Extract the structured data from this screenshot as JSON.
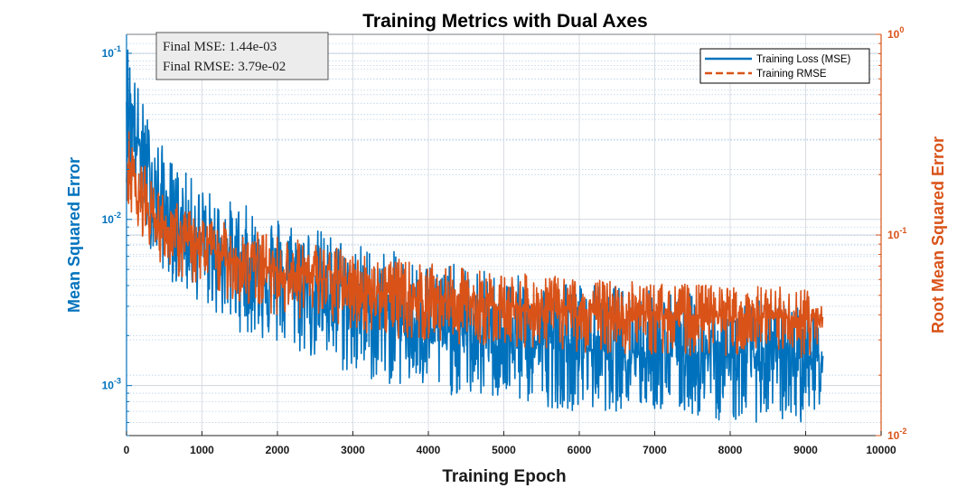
{
  "chart_data": {
    "type": "line",
    "title": "Training Metrics with Dual Axes",
    "xlabel": "Training Epoch",
    "ylabel_left": "Mean Squared Error",
    "ylabel_right": "Root Mean Squared Error",
    "xlim": [
      0,
      10000
    ],
    "xticks": [
      0,
      1000,
      2000,
      3000,
      4000,
      5000,
      6000,
      7000,
      8000,
      9000,
      10000
    ],
    "xtick_labels": [
      "0",
      "1000",
      "2000",
      "3000",
      "4000",
      "5000",
      "6000",
      "7000",
      "8000",
      "9000",
      "10000"
    ],
    "ylim_left": [
      0.0005,
      0.13
    ],
    "ylim_right": [
      0.01,
      1
    ],
    "yscale_left": "log",
    "yscale_right": "log",
    "yticks_left": [
      {
        "value": 0.1,
        "base": "10",
        "exp": "-1"
      },
      {
        "value": 0.01,
        "base": "10",
        "exp": "-2"
      },
      {
        "value": 0.001,
        "base": "10",
        "exp": "-3"
      }
    ],
    "yticks_right": [
      {
        "value": 1,
        "base": "10",
        "exp": "0"
      },
      {
        "value": 0.1,
        "base": "10",
        "exp": "-1"
      },
      {
        "value": 0.01,
        "base": "10",
        "exp": "-2"
      }
    ],
    "grid": true,
    "minor_grid": true,
    "legend_position": "top-right",
    "annotation": [
      "Final MSE: 1.44e-03",
      "Final RMSE: 3.79e-02"
    ],
    "series": [
      {
        "name": "Training Loss (MSE)",
        "axis": "left",
        "style": "solid",
        "color": "#0072BD",
        "x": [
          0,
          100,
          200,
          300,
          400,
          500,
          600,
          800,
          1000,
          1200,
          1500,
          2000,
          2500,
          3000,
          3500,
          4000,
          5000,
          6000,
          7000,
          8000,
          9000,
          9230
        ],
        "y": [
          0.06,
          0.035,
          0.025,
          0.018,
          0.014,
          0.012,
          0.01,
          0.0085,
          0.0075,
          0.0065,
          0.0055,
          0.0045,
          0.0038,
          0.003,
          0.0026,
          0.0022,
          0.0019,
          0.0017,
          0.0016,
          0.0015,
          0.00145,
          0.00144
        ],
        "fluctuation_min": [
          0.02,
          0.012,
          0.009,
          0.007,
          0.0055,
          0.0048,
          0.0042,
          0.0035,
          0.0031,
          0.0026,
          0.0021,
          0.0017,
          0.0014,
          0.0011,
          0.001,
          0.0009,
          0.0008,
          0.0007,
          0.0007,
          0.0006,
          0.0006,
          0.0008
        ],
        "fluctuation_max": [
          0.13,
          0.08,
          0.055,
          0.04,
          0.032,
          0.027,
          0.023,
          0.019,
          0.016,
          0.014,
          0.0125,
          0.011,
          0.009,
          0.0075,
          0.0065,
          0.0058,
          0.0047,
          0.0042,
          0.0038,
          0.0034,
          0.0031,
          0.0026
        ]
      },
      {
        "name": "Training RMSE",
        "axis": "right",
        "style": "dashed",
        "color": "#D95319",
        "x": [
          0,
          100,
          200,
          300,
          400,
          500,
          600,
          800,
          1000,
          1200,
          1500,
          2000,
          2500,
          3000,
          3500,
          4000,
          5000,
          6000,
          7000,
          8000,
          9000,
          9230
        ],
        "y": [
          0.24,
          0.187,
          0.158,
          0.134,
          0.118,
          0.11,
          0.1,
          0.092,
          0.087,
          0.081,
          0.074,
          0.067,
          0.062,
          0.055,
          0.051,
          0.047,
          0.044,
          0.041,
          0.04,
          0.039,
          0.038,
          0.0379
        ],
        "fluctuation_min": [
          0.15,
          0.12,
          0.1,
          0.088,
          0.076,
          0.07,
          0.064,
          0.058,
          0.054,
          0.05,
          0.045,
          0.04,
          0.037,
          0.033,
          0.031,
          0.029,
          0.028,
          0.026,
          0.025,
          0.025,
          0.024,
          0.029
        ],
        "fluctuation_max": [
          0.36,
          0.28,
          0.24,
          0.2,
          0.175,
          0.16,
          0.15,
          0.135,
          0.125,
          0.118,
          0.11,
          0.1,
          0.092,
          0.083,
          0.077,
          0.072,
          0.065,
          0.061,
          0.058,
          0.056,
          0.055,
          0.05
        ]
      }
    ]
  }
}
